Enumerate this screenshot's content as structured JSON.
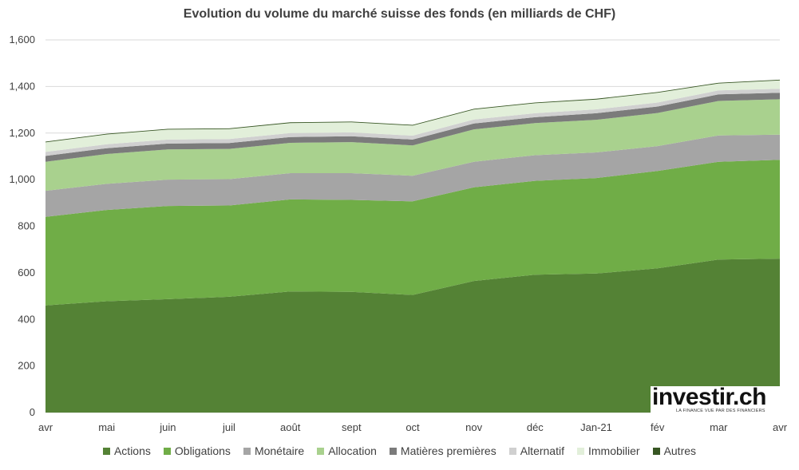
{
  "chart_data": {
    "type": "area",
    "stacked": true,
    "title": "Evolution du volume du marché suisse des fonds (en milliards de CHF)",
    "categories": [
      "avr",
      "mai",
      "juin",
      "juil",
      "août",
      "sept",
      "oct",
      "nov",
      "déc",
      "Jan-21",
      "fév",
      "mar",
      "avr"
    ],
    "ylim": [
      0,
      1600
    ],
    "yticks": [
      "0",
      "200",
      "400",
      "600",
      "800",
      "1,000",
      "1,200",
      "1,400",
      "1,600"
    ],
    "ytick_values": [
      0,
      200,
      400,
      600,
      800,
      1000,
      1200,
      1400,
      1600
    ],
    "grid": true,
    "legend_position": "bottom",
    "series": [
      {
        "name": "Actions",
        "color": "#548235",
        "values": [
          460,
          478,
          487,
          497,
          520,
          518,
          505,
          565,
          592,
          597,
          619,
          657,
          661
        ]
      },
      {
        "name": "Obligations",
        "color": "#70ad47",
        "values": [
          380,
          392,
          400,
          392,
          395,
          395,
          402,
          402,
          403,
          410,
          418,
          420,
          424
        ]
      },
      {
        "name": "Monétaire",
        "color": "#a5a5a5",
        "values": [
          112,
          112,
          113,
          113,
          113,
          115,
          110,
          110,
          110,
          110,
          107,
          113,
          108
        ]
      },
      {
        "name": "Allocation",
        "color": "#a9d18e",
        "values": [
          125,
          128,
          130,
          130,
          130,
          133,
          130,
          139,
          138,
          140,
          142,
          148,
          152
        ]
      },
      {
        "name": "Matières premières",
        "color": "#7b7b7b",
        "values": [
          25,
          25,
          25,
          25,
          25,
          25,
          25,
          25,
          25,
          28,
          28,
          28,
          28
        ]
      },
      {
        "name": "Alternatif",
        "color": "#d0d0d0",
        "values": [
          17,
          17,
          17,
          17,
          17,
          17,
          17,
          17,
          17,
          17,
          17,
          17,
          17
        ]
      },
      {
        "name": "Immobilier",
        "color": "#e2efda",
        "values": [
          41,
          42,
          43,
          43,
          43,
          43,
          43,
          43,
          43,
          42,
          42,
          30,
          36
        ]
      },
      {
        "name": "Autres",
        "color": "#375623",
        "values": [
          3,
          3,
          3,
          3,
          3,
          3,
          3,
          3,
          3,
          3,
          3,
          3,
          3
        ]
      }
    ]
  },
  "gridline_color": "#d9d9d9",
  "logo": {
    "text": "investir.ch",
    "tagline": "LA FINANCE VUE PAR DES FINANCIERS"
  }
}
